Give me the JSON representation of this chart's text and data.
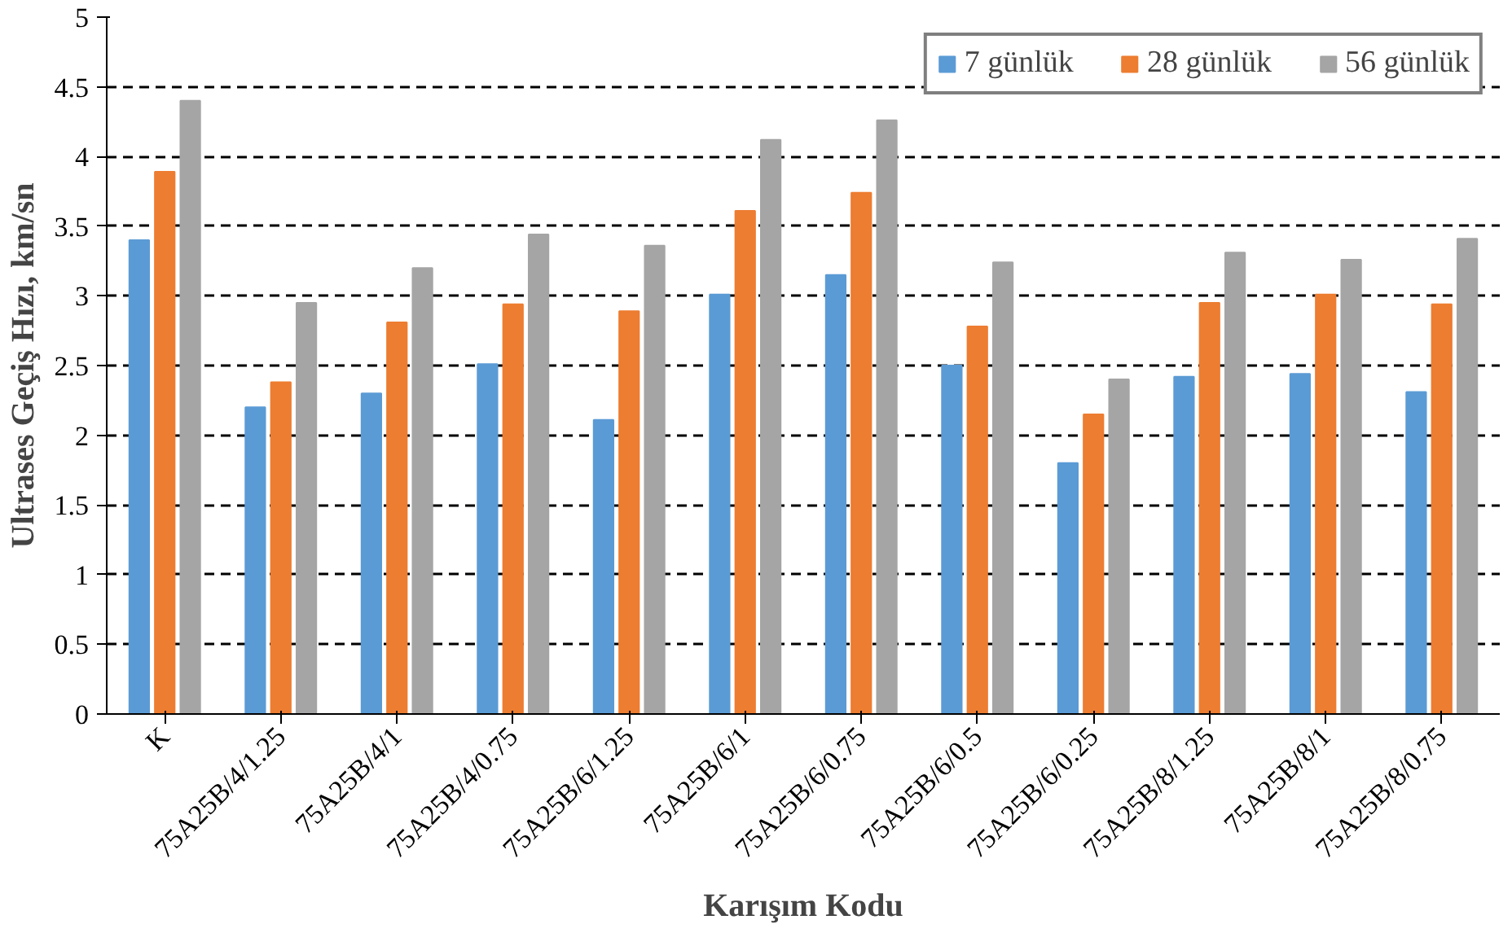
{
  "chart_data": {
    "type": "bar",
    "xlabel": "Karışım Kodu",
    "ylabel": "Ultrases Geçiş Hızı, km/sn",
    "categories": [
      "K",
      "75A25B/4/1.25",
      "75A25B/4/1",
      "75A25B/4/0.75",
      "75A25B/6/1.25",
      "75A25B/6/1",
      "75A25B/6/0.75",
      "75A25B/6/0.5",
      "75A25B/6/0.25",
      "75A25B/8/1.25",
      "75A25B/8/1",
      "75A25B/8/0.75"
    ],
    "series": [
      {
        "name": "7 günlük",
        "color": "#5b9bd5",
        "values": [
          3.4,
          2.2,
          2.3,
          2.51,
          2.11,
          3.01,
          3.15,
          2.5,
          1.8,
          2.42,
          2.44,
          2.31
        ]
      },
      {
        "name": "28 günlük",
        "color": "#ed7d31",
        "values": [
          3.89,
          2.38,
          2.81,
          2.94,
          2.89,
          3.61,
          3.74,
          2.78,
          2.15,
          2.95,
          3.01,
          2.94
        ]
      },
      {
        "name": "56 günlük",
        "color": "#a5a5a5",
        "values": [
          4.4,
          2.95,
          3.2,
          3.44,
          3.36,
          4.12,
          4.26,
          3.24,
          2.4,
          3.31,
          3.26,
          3.41
        ]
      }
    ],
    "ylim": [
      0,
      5
    ],
    "yticks": [
      0,
      0.5,
      1,
      1.5,
      2,
      2.5,
      3,
      3.5,
      4,
      4.5,
      5
    ],
    "grid": "y",
    "legend": "top right"
  }
}
